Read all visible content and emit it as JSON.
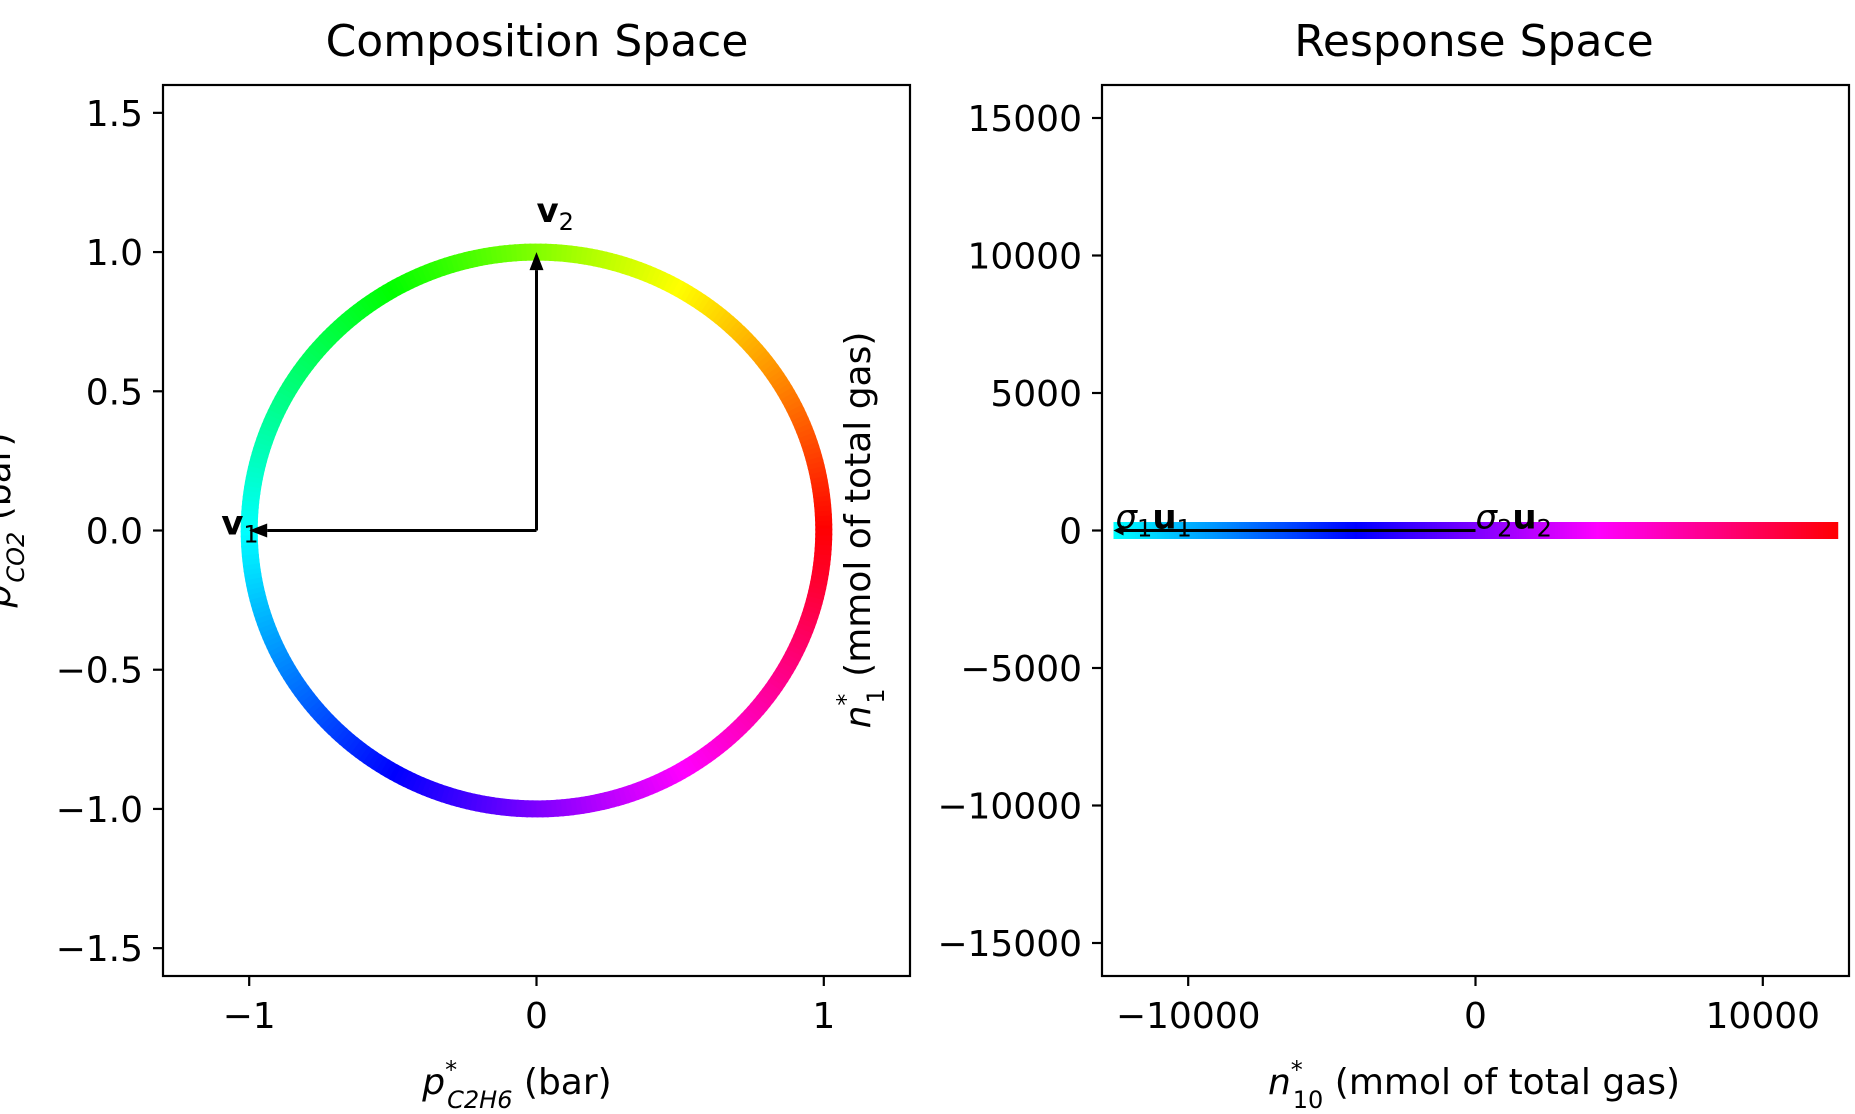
{
  "chart_data": [
    {
      "type": "scatter",
      "title": "Composition Space",
      "xlabel": {
        "base": "p",
        "sup": "*",
        "sub": "C2H6",
        "unit": " (bar)"
      },
      "ylabel": {
        "base": "p",
        "sup": "*",
        "sub": "CO2",
        "unit": " (bar)"
      },
      "xlim": [
        -1.3,
        1.3
      ],
      "ylim": [
        -1.6,
        1.6
      ],
      "xticks": [
        -1,
        0,
        1
      ],
      "yticks": [
        -1.5,
        -1.0,
        -0.5,
        0.0,
        0.5,
        1.0,
        1.5
      ],
      "xtick_labels": [
        "−1",
        "0",
        "1"
      ],
      "ytick_labels": [
        "−1.5",
        "−1.0",
        "−0.5",
        "0.0",
        "0.5",
        "1.0",
        "1.5"
      ],
      "series": [
        {
          "kind": "unit-circle",
          "radius": 1.0,
          "center": [
            0,
            0
          ],
          "colormap": "hsv"
        }
      ],
      "arrows": [
        {
          "from": [
            0,
            0
          ],
          "to": [
            -1.0,
            0.0
          ],
          "label": {
            "bold": "v",
            "sub": "1"
          }
        },
        {
          "from": [
            0,
            0
          ],
          "to": [
            0.0,
            1.0
          ],
          "label": {
            "bold": "v",
            "sub": "2"
          }
        }
      ],
      "grid": false
    },
    {
      "type": "scatter",
      "title": "Response Space",
      "xlabel": {
        "base": "n",
        "sup": "*",
        "sub": "10",
        "unit": " (mmol of total gas)"
      },
      "ylabel": {
        "base": "n",
        "sup": "*",
        "sub": "1",
        "unit": " (mmol of total gas)"
      },
      "xlim": [
        -13000,
        13000
      ],
      "ylim": [
        -16200,
        16200
      ],
      "xticks": [
        -10000,
        0,
        10000
      ],
      "yticks": [
        -15000,
        -10000,
        -5000,
        0,
        5000,
        10000,
        15000
      ],
      "xtick_labels": [
        "−10000",
        "0",
        "10000"
      ],
      "ytick_labels": [
        "−15000",
        "−10000",
        "−5000",
        "0",
        "5000",
        "10000",
        "15000"
      ],
      "series": [
        {
          "kind": "flattened-ellipse",
          "x_range": [
            -12600,
            12600
          ],
          "y_value": 0,
          "colormap": "hsv"
        }
      ],
      "arrows": [
        {
          "from": [
            0,
            0
          ],
          "to": [
            -12600,
            0
          ],
          "label": {
            "greek": "σ",
            "sub": "1",
            "bold": "u",
            "sub2": "1"
          }
        },
        {
          "from": [
            0,
            0
          ],
          "to": [
            0,
            0
          ],
          "label": {
            "greek": "σ",
            "sub": "2",
            "bold": "u",
            "sub2": "2"
          }
        }
      ],
      "grid": false
    }
  ]
}
